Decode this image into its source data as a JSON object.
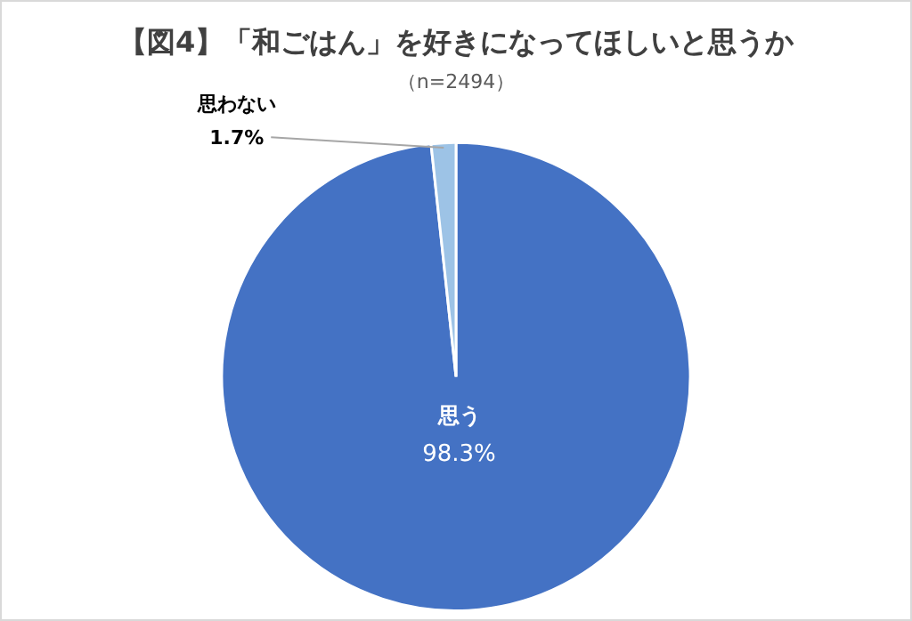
{
  "chart_data": {
    "type": "pie",
    "title": "【図4】「和ごはん」を好きになってほしいと思うか",
    "subtitle": "（n=2494）",
    "categories": [
      "思う",
      "思わない"
    ],
    "values": [
      98.3,
      1.7
    ],
    "colors": [
      "#4472c4",
      "#9dc3e6"
    ],
    "value_labels": [
      "98.3%",
      "1.7%"
    ],
    "legend": false
  }
}
